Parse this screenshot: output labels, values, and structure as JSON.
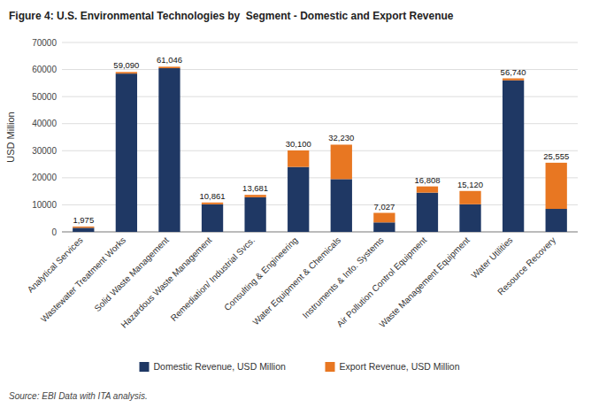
{
  "chart_data": {
    "type": "bar",
    "stacked": true,
    "title": "Figure 4: U.S. Environmental Technologies by  Segment - Domestic and Export Revenue",
    "ylabel": "USD Million",
    "source": "Source: EBI Data with ITA analysis.",
    "categories": [
      "Analytical Services",
      "Wastewater Treatment Works",
      "Solid Waste Management",
      "Hazardous Waste Management",
      "Remediation/ Industrial Svcs.",
      "Consulting & Engineering",
      "Water Equipment & Chemicals",
      "Instruments & Info. Systems",
      "Air Pollution Control Equipment",
      "Waste Management Equipment",
      "Water Utilities",
      "Resource Recovery"
    ],
    "series": [
      {
        "name": "Domestic Revenue, USD Million",
        "color": "#1F3864",
        "values": [
          1500,
          58500,
          60500,
          10200,
          12800,
          24000,
          19500,
          3500,
          14500,
          10200,
          56000,
          8500
        ]
      },
      {
        "name": "Export Revenue, USD Million",
        "color": "#E87722",
        "values": [
          475,
          590,
          546,
          661,
          881,
          6100,
          12730,
          3527,
          2308,
          4920,
          740,
          17055
        ]
      }
    ],
    "totals": [
      1975,
      59090,
      61046,
      10861,
      13681,
      30100,
      32230,
      7027,
      16808,
      15120,
      56740,
      25555
    ],
    "total_labels": [
      "1,975",
      "59,090",
      "61,046",
      "10,861",
      "13,681",
      "30,100",
      "32,230",
      "7,027",
      "16,808",
      "15,120",
      "56,740",
      "25,555"
    ],
    "ylim": [
      0,
      70000
    ],
    "yticks": [
      0,
      10000,
      20000,
      30000,
      40000,
      50000,
      60000,
      70000
    ],
    "grid": true,
    "legend": "bottom"
  }
}
